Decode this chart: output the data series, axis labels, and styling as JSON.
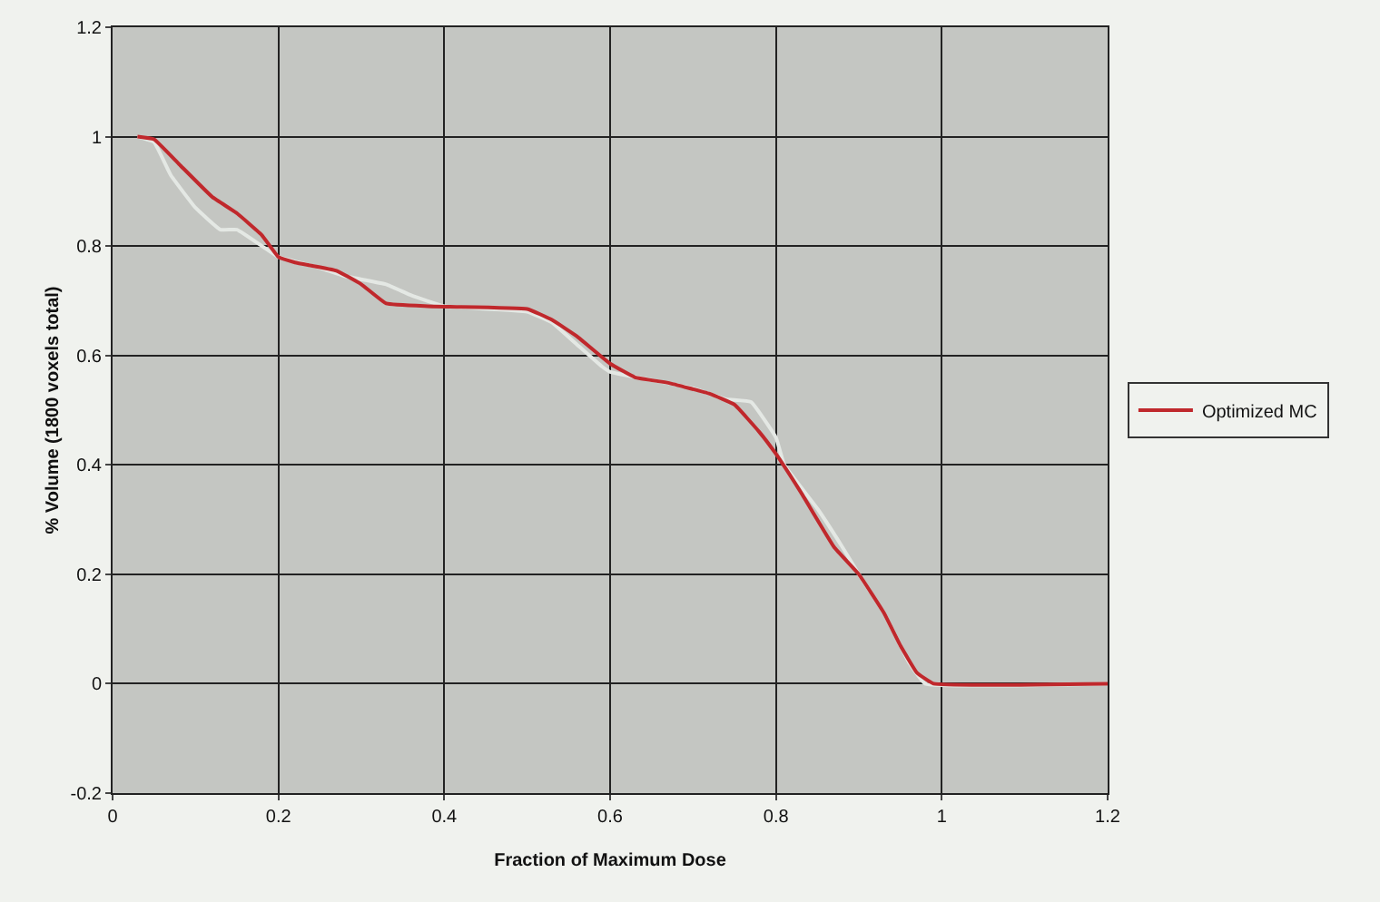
{
  "chart_data": {
    "type": "line",
    "xlabel": "Fraction of Maximum Dose",
    "ylabel": "% Volume (1800 voxels total)",
    "xlim": [
      0,
      1.2
    ],
    "xticks": [
      0,
      0.2,
      0.4,
      0.6,
      0.8,
      1,
      1.2
    ],
    "ylim": [
      -0.2,
      1.2
    ],
    "yticks": [
      -0.2,
      0,
      0.2,
      0.4,
      0.6,
      0.8,
      1,
      1.2
    ],
    "grid": true,
    "legend": "right",
    "line_style": "solid",
    "marker": "none",
    "series": [
      {
        "color": "#e4e8e4",
        "x": [
          0.03,
          0.05,
          0.07,
          0.1,
          0.13,
          0.15,
          0.18,
          0.2,
          0.25,
          0.28,
          0.33,
          0.36,
          0.4,
          0.5,
          0.53,
          0.56,
          0.59,
          0.6,
          0.65,
          0.7,
          0.74,
          0.77,
          0.8,
          0.81,
          0.85,
          0.88,
          0.9,
          0.93,
          0.96,
          0.98,
          1.2
        ],
        "values": [
          1.0,
          0.99,
          0.93,
          0.87,
          0.83,
          0.83,
          0.8,
          0.78,
          0.76,
          0.745,
          0.73,
          0.71,
          0.69,
          0.68,
          0.66,
          0.62,
          0.58,
          0.57,
          0.555,
          0.54,
          0.52,
          0.515,
          0.45,
          0.4,
          0.32,
          0.25,
          0.2,
          0.13,
          0.04,
          0.0,
          0.0
        ]
      },
      {
        "name": "Optimized MC",
        "color": "#c0282c",
        "x": [
          0.03,
          0.05,
          0.08,
          0.12,
          0.15,
          0.18,
          0.2,
          0.22,
          0.27,
          0.3,
          0.33,
          0.38,
          0.5,
          0.53,
          0.56,
          0.6,
          0.63,
          0.67,
          0.72,
          0.75,
          0.78,
          0.8,
          0.83,
          0.87,
          0.9,
          0.93,
          0.95,
          0.97,
          0.99,
          1.2
        ],
        "values": [
          1.0,
          0.995,
          0.95,
          0.89,
          0.86,
          0.82,
          0.78,
          0.77,
          0.755,
          0.73,
          0.695,
          0.69,
          0.685,
          0.665,
          0.635,
          0.585,
          0.56,
          0.55,
          0.53,
          0.51,
          0.46,
          0.42,
          0.35,
          0.25,
          0.2,
          0.13,
          0.07,
          0.02,
          0.0,
          0.0
        ]
      }
    ]
  }
}
